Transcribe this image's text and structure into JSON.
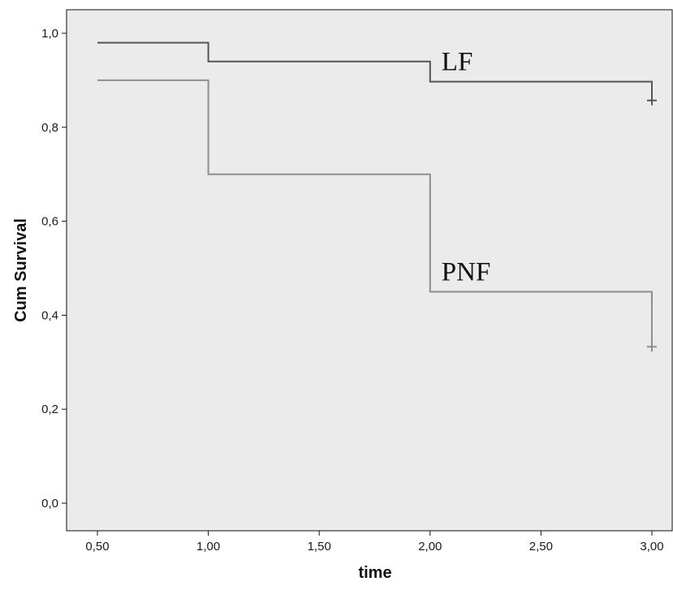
{
  "chart_data": {
    "type": "line",
    "step": true,
    "title": "",
    "xlabel": "time",
    "ylabel": "Cum Survival",
    "xlim": [
      0.5,
      3.0
    ],
    "ylim": [
      0.0,
      1.0
    ],
    "x_ticks": [
      "0,50",
      "1,00",
      "1,50",
      "2,00",
      "2,50",
      "3,00"
    ],
    "y_ticks": [
      "0,0",
      "0,2",
      "0,4",
      "0,6",
      "0,8",
      "1,0"
    ],
    "grid": false,
    "legend": "none",
    "series": [
      {
        "name": "LF",
        "color": "#555555",
        "x": [
          0.5,
          1.0,
          2.0,
          3.0
        ],
        "y": [
          0.98,
          0.94,
          0.897,
          0.857
        ],
        "censored": [
          {
            "x": 3.0,
            "y": 0.857
          }
        ]
      },
      {
        "name": "PNF",
        "color": "#8e8e8e",
        "x": [
          0.5,
          1.0,
          2.0,
          3.0
        ],
        "y": [
          0.9,
          0.7,
          0.45,
          0.333
        ],
        "censored": [
          {
            "x": 3.0,
            "y": 0.333
          }
        ]
      }
    ],
    "plot_background": "#ebebeb"
  }
}
